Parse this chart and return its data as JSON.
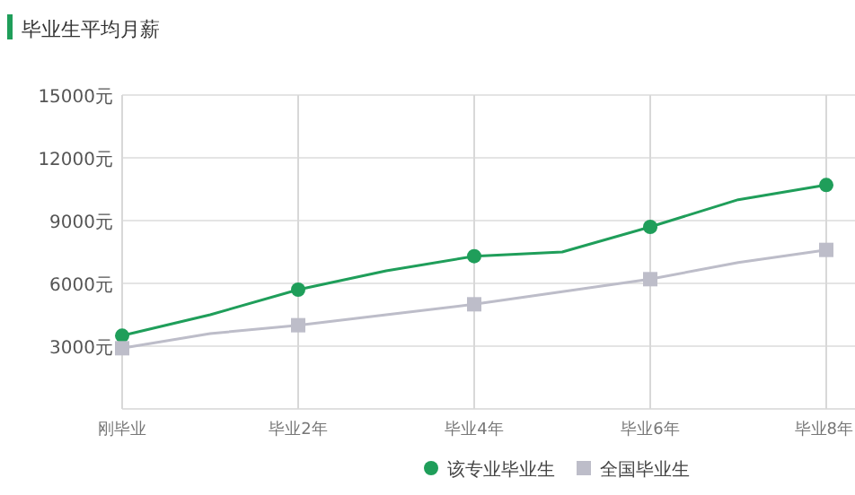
{
  "chart_data": {
    "type": "line",
    "title": "毕业生平均月薪",
    "categories": [
      "刚毕业",
      null,
      "毕业2年",
      null,
      "毕业4年",
      null,
      "毕业6年",
      null,
      "毕业8年"
    ],
    "series": [
      {
        "name": "该专业毕业生",
        "color": "#1f9e5a",
        "marker": "circle",
        "values": [
          3500,
          4500,
          5700,
          6600,
          7300,
          7500,
          8700,
          10000,
          10700
        ]
      },
      {
        "name": "全国毕业生",
        "color": "#bdbdc9",
        "marker": "square",
        "values": [
          2900,
          3600,
          4000,
          4500,
          5000,
          5600,
          6200,
          7000,
          7600
        ]
      }
    ],
    "ylim": [
      0,
      15000
    ],
    "yticks": [
      {
        "value": 3000,
        "label": "3000元"
      },
      {
        "value": 6000,
        "label": "6000元"
      },
      {
        "value": 9000,
        "label": "9000元"
      },
      {
        "value": 12000,
        "label": "12000元"
      },
      {
        "value": 15000,
        "label": "15000元"
      }
    ],
    "grid": true,
    "legend": "bottom"
  }
}
